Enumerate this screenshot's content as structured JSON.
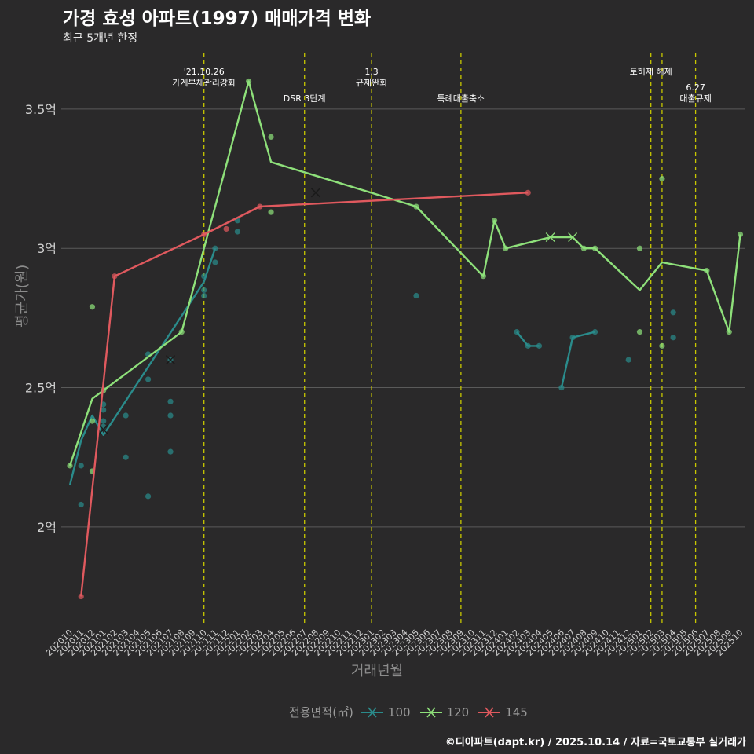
{
  "title": "가경 효성 아파트(1997) 매매가격 변화",
  "subtitle": "최근 5개년 한정",
  "caption": "©디아파트(dapt.kr) / 2025.10.14 / 자료=국토교통부 실거래가",
  "colors": {
    "background": "#2a292a",
    "grid": "#5a5a5a",
    "vline": "#c8c800",
    "s100": "#2a8b8b",
    "s120": "#8ee07a",
    "s145": "#e0595e"
  },
  "chart_data": {
    "type": "line",
    "xlabel": "거래년월",
    "ylabel": "평균가(원)",
    "ylim": [
      1.65,
      3.7
    ],
    "yticks": [
      {
        "value": 2.0,
        "label": "2억"
      },
      {
        "value": 2.5,
        "label": "2.5억"
      },
      {
        "value": 3.0,
        "label": "3억"
      },
      {
        "value": 3.5,
        "label": "3.5억"
      }
    ],
    "categories": [
      "202010",
      "202011",
      "202012",
      "202101",
      "202102",
      "202103",
      "202104",
      "202105",
      "202106",
      "202107",
      "202108",
      "202109",
      "202110",
      "202111",
      "202112",
      "202201",
      "202202",
      "202203",
      "202204",
      "202205",
      "202206",
      "202207",
      "202208",
      "202209",
      "202210",
      "202211",
      "202212",
      "202301",
      "202302",
      "202303",
      "202304",
      "202305",
      "202306",
      "202307",
      "202308",
      "202309",
      "202310",
      "202311",
      "202312",
      "202401",
      "202402",
      "202403",
      "202404",
      "202405",
      "202406",
      "202407",
      "202408",
      "202409",
      "202410",
      "202411",
      "202412",
      "202501",
      "202502",
      "202503",
      "202504",
      "202505",
      "202506",
      "202507",
      "202508",
      "202509",
      "202510"
    ],
    "legend_title": "전용면적(㎡)",
    "series": [
      {
        "name": "100",
        "line": [
          [
            0,
            2.15
          ],
          [
            1,
            2.31
          ],
          [
            2,
            2.4
          ],
          [
            3,
            2.33
          ],
          [
            12,
            2.88
          ],
          [
            13,
            3.0
          ],
          [
            35,
            null
          ],
          [
            40,
            2.7
          ],
          [
            41,
            2.65
          ],
          [
            42,
            2.65
          ],
          [
            43,
            null
          ],
          [
            44,
            2.5
          ],
          [
            45,
            2.68
          ],
          [
            47,
            2.7
          ]
        ],
        "points": [
          [
            1,
            2.22
          ],
          [
            1,
            2.08
          ],
          [
            3,
            2.44
          ],
          [
            3,
            2.42
          ],
          [
            3,
            2.38
          ],
          [
            3,
            2.36
          ],
          [
            5,
            2.4
          ],
          [
            5,
            2.25
          ],
          [
            7,
            2.62
          ],
          [
            7,
            2.53
          ],
          [
            7,
            2.11
          ],
          [
            9,
            2.6
          ],
          [
            9,
            2.45
          ],
          [
            9,
            2.4
          ],
          [
            9,
            2.27
          ],
          [
            12,
            2.9
          ],
          [
            12,
            2.85
          ],
          [
            12,
            2.83
          ],
          [
            13,
            3.0
          ],
          [
            13,
            2.95
          ],
          [
            15,
            3.1
          ],
          [
            15,
            3.06
          ],
          [
            31,
            2.83
          ],
          [
            40,
            2.7
          ],
          [
            41,
            2.65
          ],
          [
            42,
            2.65
          ],
          [
            44,
            2.5
          ],
          [
            45,
            2.68
          ],
          [
            47,
            2.7
          ],
          [
            50,
            2.6
          ],
          [
            54,
            2.77
          ],
          [
            54,
            2.68
          ]
        ],
        "crosses": [
          [
            3,
            2.35
          ],
          [
            9,
            2.6
          ],
          [
            22,
            3.2
          ]
        ]
      },
      {
        "name": "120",
        "line": [
          [
            0,
            2.22
          ],
          [
            2,
            2.46
          ],
          [
            3,
            2.49
          ],
          [
            10,
            2.7
          ],
          [
            16,
            3.6
          ],
          [
            18,
            3.31
          ],
          [
            31,
            3.15
          ],
          [
            37,
            2.9
          ],
          [
            38,
            3.1
          ],
          [
            39,
            3.0
          ],
          [
            43,
            3.04
          ],
          [
            45,
            3.04
          ],
          [
            46,
            3.0
          ],
          [
            47,
            3.0
          ],
          [
            51,
            2.85
          ],
          [
            53,
            2.95
          ],
          [
            57,
            2.92
          ],
          [
            59,
            2.7
          ],
          [
            60,
            3.05
          ]
        ],
        "points": [
          [
            0,
            2.22
          ],
          [
            2,
            2.79
          ],
          [
            2,
            2.38
          ],
          [
            2,
            2.2
          ],
          [
            3,
            2.49
          ],
          [
            10,
            2.7
          ],
          [
            16,
            3.6
          ],
          [
            18,
            3.4
          ],
          [
            18,
            3.13
          ],
          [
            31,
            3.15
          ],
          [
            37,
            2.9
          ],
          [
            38,
            3.1
          ],
          [
            39,
            3.0
          ],
          [
            46,
            3.0
          ],
          [
            47,
            3.0
          ],
          [
            51,
            3.0
          ],
          [
            51,
            2.7
          ],
          [
            53,
            3.25
          ],
          [
            53,
            2.65
          ],
          [
            57,
            2.92
          ],
          [
            59,
            2.7
          ],
          [
            60,
            3.05
          ]
        ],
        "crosses": [
          [
            43,
            3.04
          ],
          [
            45,
            3.04
          ]
        ]
      },
      {
        "name": "145",
        "line": [
          [
            1,
            1.75
          ],
          [
            4,
            2.9
          ],
          [
            12,
            3.05
          ],
          [
            17,
            3.15
          ],
          [
            41,
            3.2
          ]
        ],
        "points": [
          [
            1,
            1.75
          ],
          [
            4,
            2.9
          ],
          [
            12,
            3.05
          ],
          [
            14,
            3.07
          ],
          [
            17,
            3.15
          ],
          [
            41,
            3.2
          ]
        ],
        "crosses": [
          [
            22,
            3.2
          ]
        ]
      }
    ],
    "events": [
      {
        "index": 12,
        "lines": [
          "'21.10.26",
          "가계부채관리강화"
        ],
        "row": 0
      },
      {
        "index": 21,
        "lines": [
          "DSR 3단계"
        ],
        "row": 1
      },
      {
        "index": 27,
        "lines": [
          "1.3",
          "규제완화"
        ],
        "row": 0
      },
      {
        "index": 35,
        "lines": [
          "특례대출축소"
        ],
        "row": 1
      },
      {
        "index": 52,
        "lines": [
          "토허제 해제"
        ],
        "row": 0
      },
      {
        "index": 53,
        "lines": [],
        "row": 0
      },
      {
        "index": 56,
        "lines": [
          "6.27",
          "대출규제"
        ],
        "row": 1
      }
    ]
  }
}
